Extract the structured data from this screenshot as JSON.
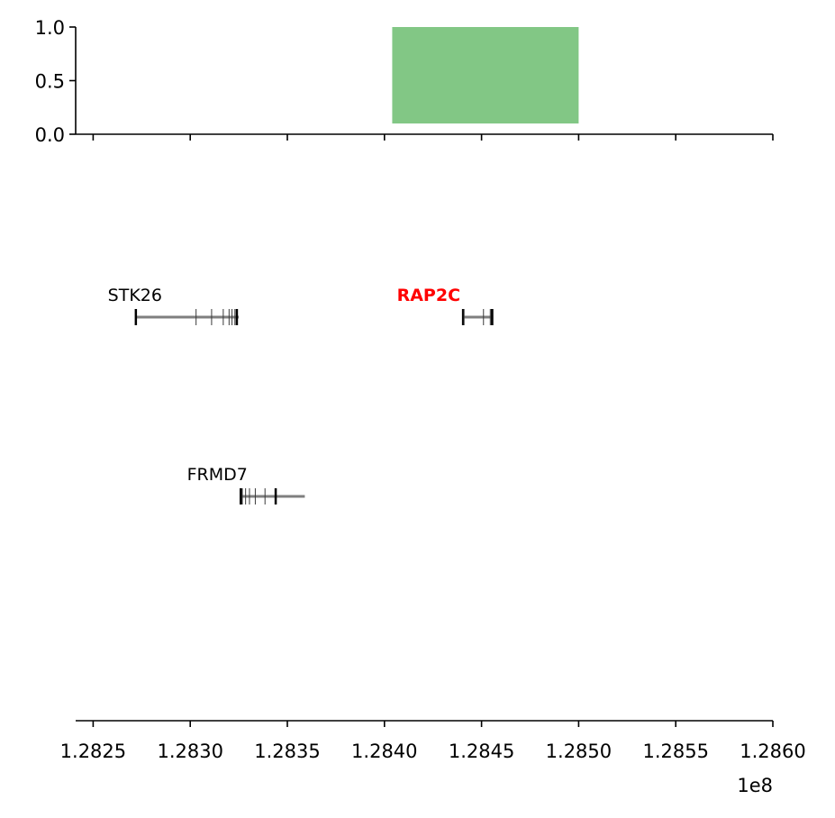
{
  "chart_data": [
    {
      "type": "bar",
      "panel": "signal-track",
      "title": "",
      "xlabel": "",
      "ylabel": "",
      "xlim": [
        128241000,
        128600000
      ],
      "ylim": [
        0.0,
        1.0
      ],
      "y_ticks": [
        0.0,
        0.5,
        1.0
      ],
      "y_tick_labels": [
        "0.0",
        "0.5",
        "1.0"
      ],
      "x_ticks": [
        128250000,
        128300000,
        128350000,
        128400000,
        128450000,
        128500000,
        128550000,
        128600000
      ],
      "x_tick_labels_shown": false,
      "bars": [
        {
          "x0": 128404000,
          "x1": 128500000,
          "y0": 0.1,
          "y1": 1.0,
          "color": "#82c785"
        }
      ],
      "grid": false
    },
    {
      "type": "gene-track",
      "panel": "gene-annotation",
      "title": "",
      "xlabel": "",
      "ylabel": "",
      "xlim": [
        128241000,
        128600000
      ],
      "x_ticks": [
        128250000,
        128300000,
        128350000,
        128400000,
        128450000,
        128500000,
        128550000,
        128600000
      ],
      "x_tick_labels": [
        "1.2825",
        "1.2830",
        "1.2835",
        "1.2840",
        "1.2845",
        "1.2850",
        "1.2855",
        "1.2860"
      ],
      "x_offset_label": "1e8",
      "line_color": "#7f7f7f",
      "exon_color": "#000000",
      "highlight_color": "#ff0000",
      "grid": false,
      "genes": [
        {
          "name": "STK26",
          "row": 0,
          "start": 128272000,
          "end": 128325000,
          "exons": [
            128272000,
            128303000,
            128311000,
            128317000,
            128320000,
            128321500,
            128323000,
            128324000
          ],
          "highlight": false
        },
        {
          "name": "RAP2C",
          "row": 0,
          "start": 128440000,
          "end": 128456000,
          "exons": [
            128440500,
            128441000,
            128451000,
            128454500,
            128455000,
            128455500
          ],
          "highlight": true
        },
        {
          "name": "FRMD7",
          "row": 1,
          "start": 128326000,
          "end": 128359000,
          "exons": [
            128326000,
            128326800,
            128328500,
            128330500,
            128333500,
            128338500,
            128344000
          ],
          "highlight": false
        }
      ]
    }
  ]
}
